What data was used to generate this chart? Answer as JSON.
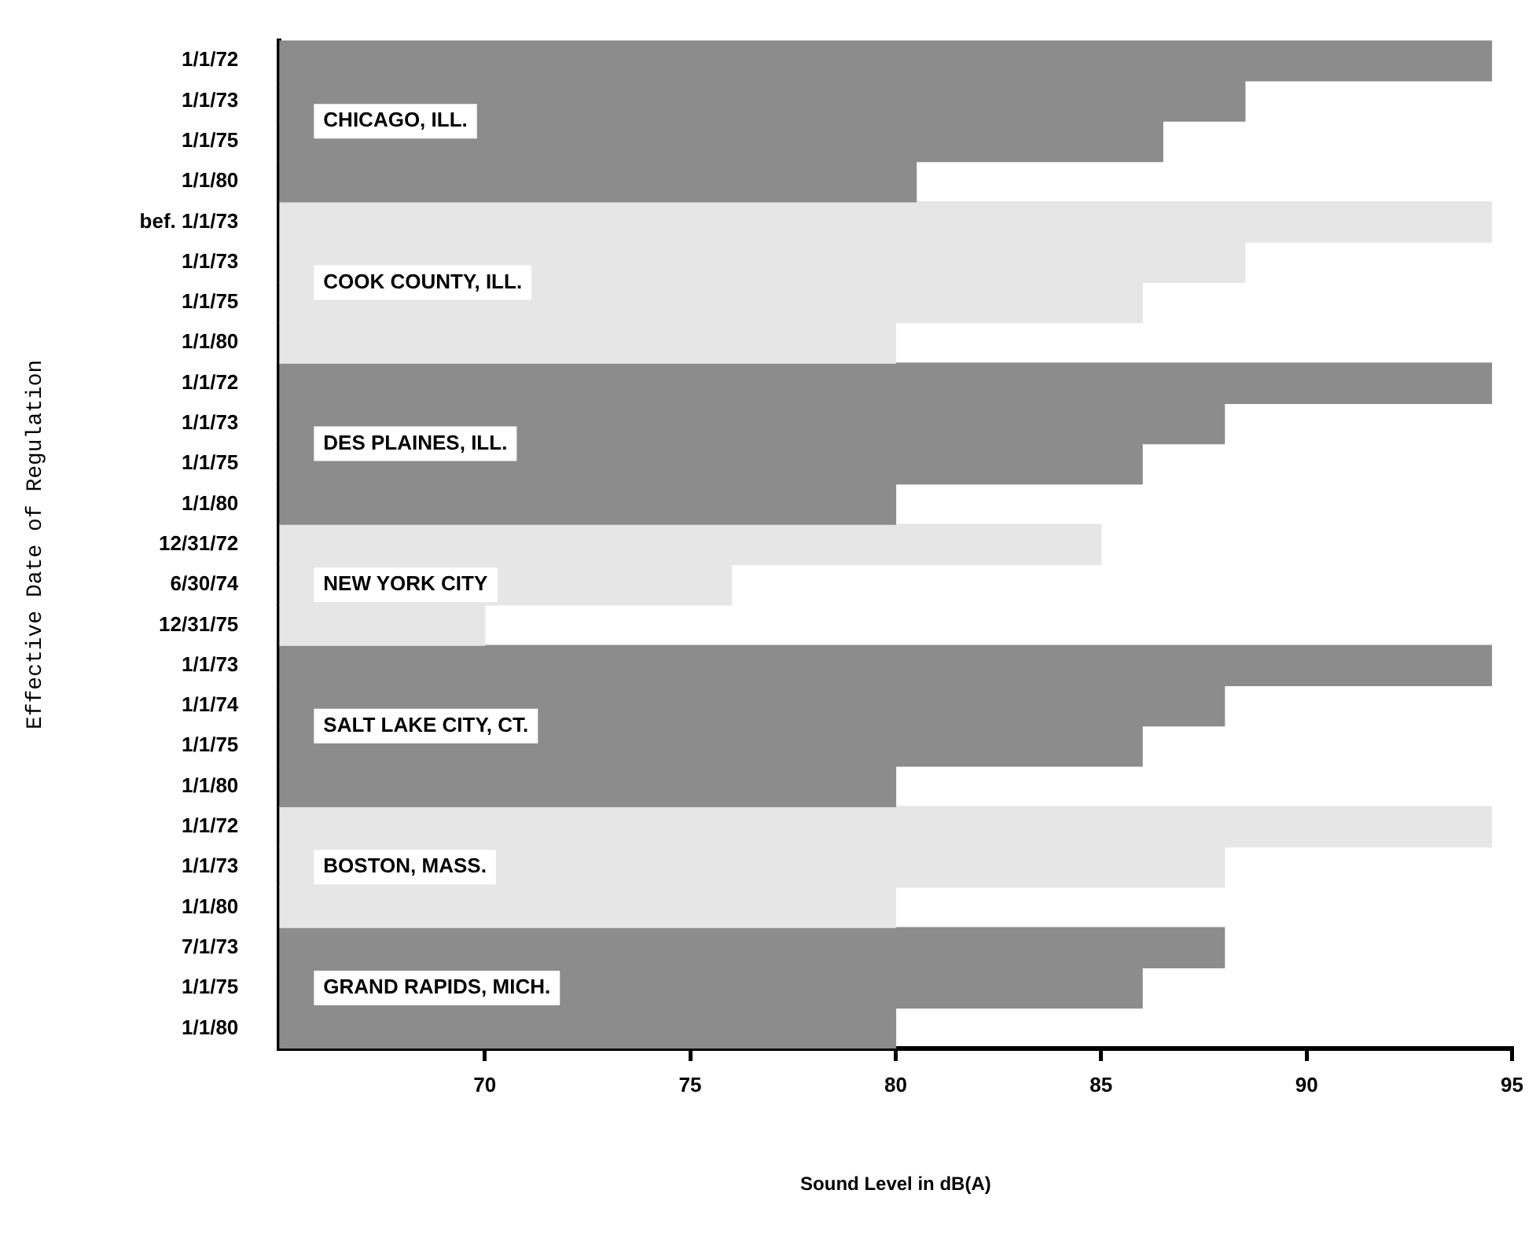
{
  "chart_data": {
    "type": "bar",
    "orientation": "horizontal",
    "xlabel": "Sound Level in dB(A)",
    "ylabel": "Effective Date of Regulation",
    "categories": [
      "1/1/72",
      "1/1/73",
      "1/1/75",
      "1/1/80",
      "bef. 1/1/73",
      "1/1/73",
      "1/1/75",
      "1/1/80",
      "1/1/72",
      "1/1/73",
      "1/1/75",
      "1/1/80",
      "12/31/72",
      "6/30/74",
      "12/31/75",
      "1/1/73",
      "1/1/74",
      "1/1/75",
      "1/1/80",
      "1/1/72",
      "1/1/73",
      "1/1/80",
      "7/1/73",
      "1/1/75",
      "1/1/80"
    ],
    "series": [
      {
        "name": "CHICAGO, ILL.",
        "color": "#8c8c8c",
        "values": [
          94.5,
          88.5,
          86.5,
          80.5,
          null,
          null,
          null,
          null,
          null,
          null,
          null,
          null,
          null,
          null,
          null,
          null,
          null,
          null,
          null,
          null,
          null,
          null,
          null,
          null,
          null
        ]
      },
      {
        "name": "COOK COUNTY, ILL.",
        "color": "#e6e6e6",
        "values": [
          null,
          null,
          null,
          null,
          94.5,
          88.5,
          86,
          80,
          null,
          null,
          null,
          null,
          null,
          null,
          null,
          null,
          null,
          null,
          null,
          null,
          null,
          null,
          null,
          null,
          null
        ]
      },
      {
        "name": "DES PLAINES, ILL.",
        "color": "#8c8c8c",
        "values": [
          null,
          null,
          null,
          null,
          null,
          null,
          null,
          null,
          94.5,
          88,
          86,
          80,
          null,
          null,
          null,
          null,
          null,
          null,
          null,
          null,
          null,
          null,
          null,
          null,
          null
        ]
      },
      {
        "name": "NEW YORK CITY",
        "color": "#e6e6e6",
        "values": [
          null,
          null,
          null,
          null,
          null,
          null,
          null,
          null,
          null,
          null,
          null,
          null,
          85,
          76,
          70,
          null,
          null,
          null,
          null,
          null,
          null,
          null,
          null,
          null,
          null
        ]
      },
      {
        "name": "SALT LAKE CITY, CT.",
        "color": "#8c8c8c",
        "values": [
          null,
          null,
          null,
          null,
          null,
          null,
          null,
          null,
          null,
          null,
          null,
          null,
          null,
          null,
          null,
          94.5,
          88,
          86,
          80,
          null,
          null,
          null,
          null,
          null,
          null
        ]
      },
      {
        "name": "BOSTON, MASS.",
        "color": "#e6e6e6",
        "values": [
          null,
          null,
          null,
          null,
          null,
          null,
          null,
          null,
          null,
          null,
          null,
          null,
          null,
          null,
          null,
          null,
          null,
          null,
          null,
          94.5,
          88,
          80,
          null,
          null,
          null
        ]
      },
      {
        "name": "GRAND RAPIDS, MICH.",
        "color": "#8c8c8c",
        "values": [
          null,
          null,
          null,
          null,
          null,
          null,
          null,
          null,
          null,
          null,
          null,
          null,
          null,
          null,
          null,
          null,
          null,
          null,
          null,
          null,
          null,
          null,
          88,
          86,
          80
        ]
      }
    ],
    "xlim": [
      65,
      95
    ],
    "xticks": [
      70,
      75,
      80,
      85,
      90,
      95
    ]
  }
}
